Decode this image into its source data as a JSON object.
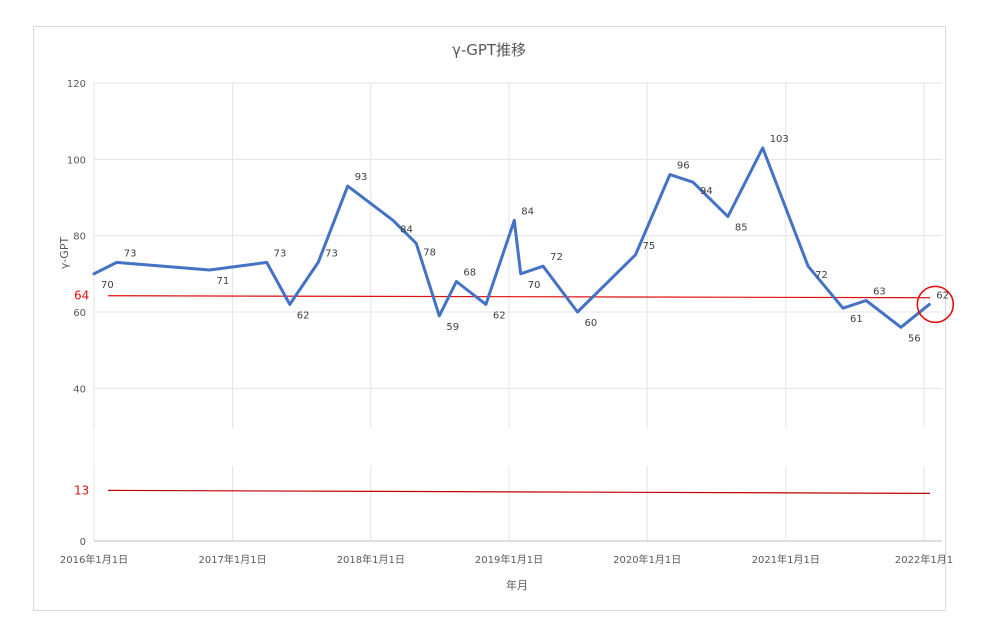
{
  "chart_data": {
    "type": "line",
    "title": "γ-GPT推移",
    "xlabel": "年月",
    "ylabel": "γ-GPT",
    "ylim": [
      0,
      120
    ],
    "yticks": [
      "0",
      "40",
      "60",
      "80",
      "100",
      "120"
    ],
    "xtick_labels": [
      "2016年1月1日",
      "2017年1月1日",
      "2018年1月1日",
      "2019年1月1日",
      "2020年1月1日",
      "2021年1月1日",
      "2022年1月1"
    ],
    "grid": true,
    "line_color": "#4472c4",
    "series": [
      {
        "points": [
          {
            "x": "2016-01-01",
            "y": 70
          },
          {
            "x": "2016-03-01",
            "y": 73
          },
          {
            "x": "2016-11-01",
            "y": 71
          },
          {
            "x": "2017-04-01",
            "y": 73
          },
          {
            "x": "2017-06-01",
            "y": 62
          },
          {
            "x": "2017-08-15",
            "y": 73
          },
          {
            "x": "2017-11-01",
            "y": 93
          },
          {
            "x": "2018-03-01",
            "y": 84
          },
          {
            "x": "2018-05-01",
            "y": 78
          },
          {
            "x": "2018-07-01",
            "y": 59
          },
          {
            "x": "2018-08-15",
            "y": 68
          },
          {
            "x": "2018-11-01",
            "y": 62
          },
          {
            "x": "2019-01-15",
            "y": 84
          },
          {
            "x": "2019-02-01",
            "y": 70
          },
          {
            "x": "2019-04-01",
            "y": 72
          },
          {
            "x": "2019-07-01",
            "y": 60
          },
          {
            "x": "2019-12-01",
            "y": 75
          },
          {
            "x": "2020-03-01",
            "y": 96
          },
          {
            "x": "2020-05-01",
            "y": 94
          },
          {
            "x": "2020-08-01",
            "y": 85
          },
          {
            "x": "2020-11-01",
            "y": 103
          },
          {
            "x": "2021-03-01",
            "y": 72
          },
          {
            "x": "2021-06-01",
            "y": 61
          },
          {
            "x": "2021-08-01",
            "y": 63
          },
          {
            "x": "2021-11-01",
            "y": 56
          },
          {
            "x": "2022-01-15",
            "y": 62
          }
        ]
      }
    ],
    "reference_lines": [
      {
        "label": "64",
        "value": 64,
        "color": "#e01010"
      },
      {
        "label": "13",
        "value": 13,
        "color": "#c00000"
      }
    ],
    "highlight": {
      "x": "2022-01-15",
      "y": 62,
      "shape": "circle",
      "color": "#e01010"
    }
  }
}
